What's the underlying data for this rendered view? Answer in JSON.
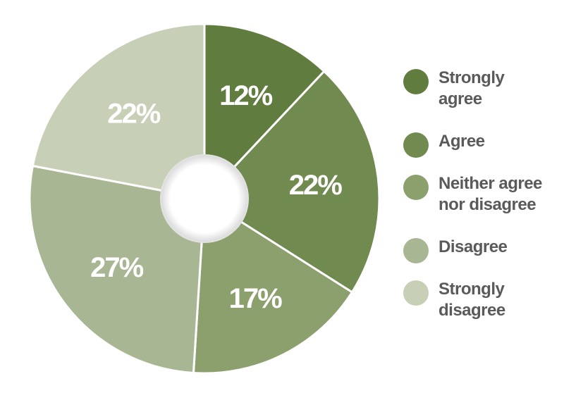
{
  "chart_data": {
    "type": "pie",
    "style": "donut",
    "categories": [
      "Strongly agree",
      "Agree",
      "Neither agree nor disagree",
      "Disagree",
      "Strongly disagree"
    ],
    "values": [
      12,
      22,
      17,
      27,
      22
    ],
    "value_labels": [
      "12%",
      "22%",
      "17%",
      "27%",
      "22%"
    ],
    "colors": [
      "#607c3f",
      "#708a50",
      "#8ca06e",
      "#a9b693",
      "#c8cfb7"
    ],
    "title": "",
    "legend_position": "right"
  },
  "legend": {
    "items": [
      {
        "label_lines": [
          "Strongly",
          "agree"
        ],
        "color": "#607c3f"
      },
      {
        "label_lines": [
          "Agree"
        ],
        "color": "#708a50"
      },
      {
        "label_lines": [
          "Neither agree",
          "nor disagree"
        ],
        "color": "#8ca06e"
      },
      {
        "label_lines": [
          "Disagree"
        ],
        "color": "#a9b693"
      },
      {
        "label_lines": [
          "Strongly",
          "disagree"
        ],
        "color": "#c8cfb7"
      }
    ]
  }
}
